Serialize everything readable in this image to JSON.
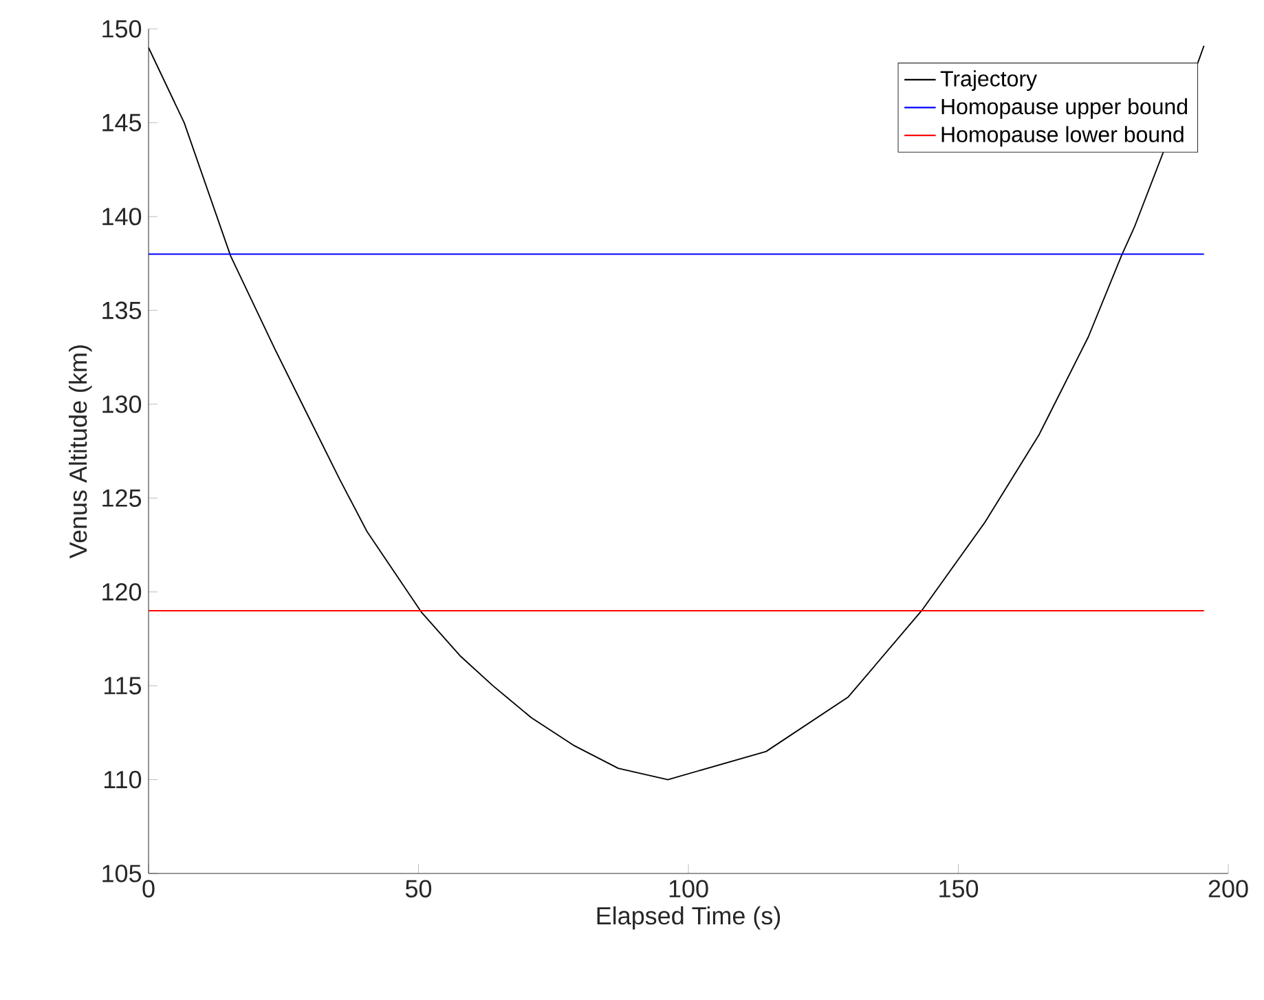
{
  "chart_data": {
    "type": "line",
    "xlabel": "Elapsed Time (s)",
    "ylabel": "Venus Altitude (km)",
    "xlim": [
      0,
      200
    ],
    "ylim": [
      105,
      150
    ],
    "xticks": [
      0,
      50,
      100,
      150,
      200
    ],
    "yticks": [
      105,
      110,
      115,
      120,
      125,
      130,
      135,
      140,
      145,
      150
    ],
    "grid": false,
    "legend": "top right",
    "marker": "none",
    "line_style": "solid",
    "series": [
      {
        "name": "Trajectory",
        "color": "#000000",
        "x": [
          0,
          6.6,
          15.2,
          23.3,
          28.3,
          35.4,
          40.5,
          50.6,
          57.7,
          63.8,
          70.9,
          78.9,
          87.0,
          96.2,
          114.4,
          129.6,
          143.2,
          154.9,
          165.0,
          174.1,
          180.2,
          182.7,
          194.5,
          195.5
        ],
        "values": [
          149.0,
          145.0,
          137.9,
          133.0,
          130.1,
          126.0,
          123.2,
          118.9,
          116.6,
          115.0,
          113.3,
          111.8,
          110.6,
          110.0,
          111.5,
          114.4,
          119.0,
          123.7,
          128.4,
          133.6,
          137.9,
          139.5,
          148.3,
          149.1
        ]
      },
      {
        "name": "Homopause upper bound",
        "color": "#0000ff",
        "x": [
          0,
          195.5
        ],
        "values": [
          138,
          138
        ]
      },
      {
        "name": "Homopause lower bound",
        "color": "#ff0000",
        "x": [
          0,
          195.5
        ],
        "values": [
          119,
          119
        ]
      }
    ]
  }
}
